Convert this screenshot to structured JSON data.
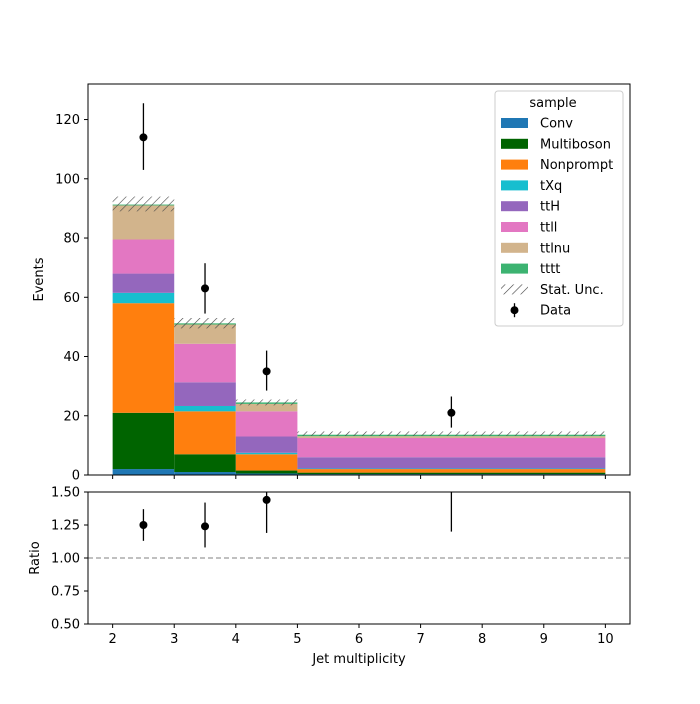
{
  "chart_data": {
    "type": "bar",
    "stacked": true,
    "main": {
      "ylabel": "Events",
      "ylim": [
        0,
        132
      ],
      "yticks": [
        "0",
        "20",
        "40",
        "60",
        "80",
        "100",
        "120"
      ],
      "bins": [
        [
          2,
          3
        ],
        [
          3,
          4
        ],
        [
          4,
          5
        ],
        [
          5,
          10
        ]
      ],
      "series": [
        {
          "name": "Conv",
          "color": "#1f77b4",
          "values": [
            2.0,
            1.0,
            0.5,
            0.3
          ]
        },
        {
          "name": "Multiboson",
          "color": "#006400",
          "values": [
            19.0,
            6.0,
            1.0,
            0.5
          ]
        },
        {
          "name": "Nonprompt",
          "color": "#ff7f0e",
          "values": [
            37.0,
            14.5,
            5.5,
            1.2
          ]
        },
        {
          "name": "tXq",
          "color": "#17becf",
          "values": [
            3.5,
            1.8,
            0.5,
            0.2
          ]
        },
        {
          "name": "ttH",
          "color": "#9467bd",
          "values": [
            6.5,
            8.0,
            5.5,
            3.8
          ]
        },
        {
          "name": "ttll",
          "color": "#e377c2",
          "values": [
            11.5,
            13.0,
            8.5,
            6.5
          ]
        },
        {
          "name": "ttlnu",
          "color": "#d2b48c",
          "values": [
            11.5,
            6.5,
            2.5,
            0.6
          ]
        },
        {
          "name": "tttt",
          "color": "#3cb371",
          "values": [
            0.3,
            0.4,
            0.5,
            0.5
          ]
        }
      ],
      "stat_unc": [
        {
          "low": 89.0,
          "high": 94.0
        },
        {
          "low": 49.5,
          "high": 53.0
        },
        {
          "low": 23.5,
          "high": 25.5
        },
        {
          "low": 13.2,
          "high": 14.7
        }
      ],
      "data": {
        "name": "Data",
        "x": [
          2.5,
          3.5,
          4.5,
          7.5
        ],
        "y": [
          114,
          63,
          35,
          21
        ],
        "err_low": [
          11,
          8.5,
          6.5,
          5
        ],
        "err_high": [
          11.5,
          8.5,
          7,
          5.5
        ]
      },
      "legend": {
        "title": "sample",
        "placement": "upper right",
        "stat_label": "Stat. Unc."
      }
    },
    "ratio": {
      "ylabel": "Ratio",
      "ylim": [
        0.5,
        1.5
      ],
      "yticks": [
        "0.50",
        "0.75",
        "1.00",
        "1.25",
        "1.50"
      ],
      "reference_line": 1.0,
      "x": [
        2.5,
        3.5,
        4.5,
        7.5
      ],
      "y": [
        1.25,
        1.24,
        1.44,
        null
      ],
      "err_low": [
        0.12,
        0.16,
        0.25,
        null
      ],
      "err_high": [
        0.12,
        0.18,
        0.25,
        null
      ],
      "bar_only": [
        {
          "x": 7.5,
          "low": 1.2,
          "high": 1.5
        }
      ]
    },
    "xlabel": "Jet multiplicity",
    "xlim": [
      1.6,
      10.4
    ],
    "xticks": [
      "2",
      "3",
      "4",
      "5",
      "6",
      "7",
      "8",
      "9",
      "10"
    ]
  }
}
